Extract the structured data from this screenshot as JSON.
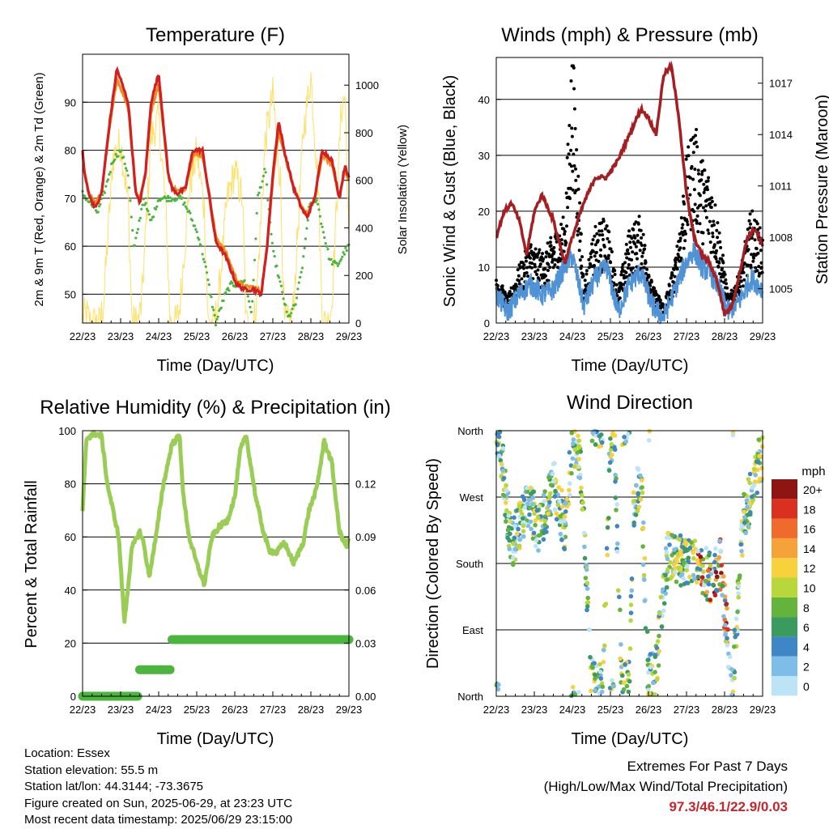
{
  "x_ticks": [
    "22/23",
    "23/23",
    "24/23",
    "25/23",
    "26/23",
    "27/23",
    "28/23",
    "29/23"
  ],
  "panels": {
    "temperature": {
      "title": "Temperature (F)",
      "xlabel": "Time (Day/UTC)",
      "ylabel_left": "2m & 9m T (Red, Orange) & 2m Td (Green)",
      "ylabel_right": "Solar Insolation (Yellow)"
    },
    "winds": {
      "title": "Winds (mph) & Pressure (mb)",
      "xlabel": "Time (Day/UTC)",
      "ylabel_left": "Sonic Wind & Gust (Blue, Black)",
      "ylabel_right": "Station Pressure (Maroon)"
    },
    "humidity": {
      "title": "Relative Humidity (%) & Precipitation (in)",
      "xlabel": "Time (Day/UTC)",
      "ylabel_left": "Percent & Total Rainfall"
    },
    "direction": {
      "title": "Wind Direction",
      "xlabel": "Time (Day/UTC)",
      "ylabel_left": "Direction (Colored By Speed)",
      "legend_title": "mph"
    }
  },
  "colors": {
    "temp_2m": "#d21f1f",
    "temp_9m": "#f08a1f",
    "dewpoint": "#4cb53f",
    "solar": "#ffe066",
    "wind": "#4f93d6",
    "gust": "#000000",
    "pressure": "#a41e22",
    "rh": "#9acd55",
    "precip": "#4cb53f"
  },
  "chart_data": [
    {
      "type": "line",
      "title": "Temperature (F)",
      "xlabel": "Time (Day/UTC)",
      "ylabel": "2m & 9m T (Red, Orange) & 2m Td (Green)",
      "ylabel_right": "Solar Insolation (Yellow)",
      "x_tick_labels": [
        "22/23",
        "23/23",
        "24/23",
        "25/23",
        "26/23",
        "27/23",
        "28/23",
        "29/23"
      ],
      "xlim": [
        0,
        7
      ],
      "ylim": [
        44,
        100
      ],
      "ylim_right": [
        0,
        1130
      ],
      "y_ticks": [
        50,
        60,
        70,
        80,
        90
      ],
      "y_ticks_right": [
        0,
        200,
        400,
        600,
        800,
        1000
      ],
      "grid": true,
      "series": [
        {
          "name": "2m T",
          "x": [
            0,
            0.05,
            0.2,
            0.35,
            0.5,
            0.7,
            0.9,
            1.2,
            1.4,
            1.5,
            1.65,
            1.8,
            2.0,
            2.25,
            2.35,
            2.5,
            2.7,
            2.9,
            3.15,
            3.3,
            3.5,
            3.75,
            3.9,
            4.05,
            4.25,
            4.5,
            4.7,
            4.85,
            5.0,
            5.15,
            5.3,
            5.55,
            5.75,
            5.9,
            6.1,
            6.3,
            6.55,
            6.75,
            6.9,
            7.0
          ],
          "values": [
            80,
            75,
            70,
            68,
            71,
            85,
            97,
            90,
            71,
            69,
            75,
            90,
            96,
            75,
            72,
            71,
            72,
            80,
            80,
            72,
            61,
            58,
            55,
            52,
            51,
            51,
            50,
            60,
            75,
            86,
            80,
            72,
            68,
            66,
            70,
            80,
            78,
            70,
            77,
            74
          ]
        },
        {
          "name": "9m T",
          "x": [
            0,
            0.05,
            0.2,
            0.35,
            0.5,
            0.7,
            0.9,
            1.2,
            1.4,
            1.5,
            1.65,
            1.8,
            2.0,
            2.25,
            2.35,
            2.5,
            2.7,
            2.9,
            3.15,
            3.3,
            3.5,
            3.75,
            3.9,
            4.05,
            4.25,
            4.5,
            4.7,
            4.85,
            5.0,
            5.15,
            5.3,
            5.55,
            5.75,
            5.9,
            6.1,
            6.3,
            6.55,
            6.75,
            6.9,
            7.0
          ],
          "values": [
            79.5,
            75,
            70.5,
            69,
            71,
            84,
            95,
            89,
            71.5,
            70,
            75,
            88,
            94,
            75,
            72.5,
            71.5,
            72,
            79,
            79,
            72.5,
            62,
            59,
            56,
            53,
            51.5,
            51.5,
            50.5,
            60,
            74,
            84,
            79.5,
            72,
            68.5,
            66.5,
            70,
            79,
            77,
            70.5,
            76,
            73.5
          ]
        },
        {
          "name": "2m Td",
          "x": [
            0,
            0.2,
            0.4,
            0.6,
            0.8,
            1.0,
            1.2,
            1.35,
            1.6,
            1.8,
            2.0,
            2.3,
            2.6,
            2.8,
            3.05,
            3.2,
            3.5,
            3.75,
            3.9,
            4.1,
            4.25,
            4.45,
            4.6,
            4.8,
            5.0,
            5.2,
            5.4,
            5.6,
            5.8,
            5.95,
            6.15,
            6.3,
            6.5,
            6.7,
            6.9,
            7.0
          ],
          "values": [
            71,
            69,
            67,
            72,
            78,
            80,
            75,
            59,
            70,
            65,
            70,
            70,
            70,
            67,
            62,
            57,
            44,
            50,
            52,
            52,
            53,
            46,
            70,
            76,
            59,
            52,
            45,
            48,
            57,
            68,
            70,
            64,
            57,
            56,
            59,
            60
          ]
        },
        {
          "name": "Solar Insolation",
          "x": [
            0,
            0.1,
            0.2,
            0.3,
            0.45,
            0.55,
            0.8,
            1.0,
            1.2,
            1.3,
            1.45,
            1.55,
            1.8,
            2.0,
            2.2,
            2.3,
            2.45,
            2.55,
            2.8,
            3.0,
            3.2,
            3.3,
            3.45,
            3.55,
            3.8,
            4.0,
            4.2,
            4.3,
            4.45,
            4.55,
            4.8,
            5.0,
            5.2,
            5.3,
            5.45,
            5.55,
            5.8,
            6.0,
            6.2,
            6.3,
            6.45,
            6.55,
            6.8,
            6.9,
            7.0
          ],
          "values": [
            20,
            40,
            0,
            0,
            0,
            80,
            700,
            760,
            500,
            0,
            0,
            80,
            780,
            860,
            450,
            0,
            0,
            60,
            560,
            720,
            480,
            0,
            0,
            60,
            520,
            640,
            520,
            0,
            0,
            40,
            760,
            960,
            600,
            0,
            0,
            80,
            800,
            1040,
            560,
            0,
            0,
            80,
            900,
            960,
            300
          ]
        }
      ]
    },
    {
      "type": "scatter",
      "title": "Winds (mph) & Pressure (mb)",
      "xlabel": "Time (Day/UTC)",
      "ylabel": "Sonic Wind & Gust (Blue, Black)",
      "ylabel_right": "Station Pressure (Maroon)",
      "x_tick_labels": [
        "22/23",
        "23/23",
        "24/23",
        "25/23",
        "26/23",
        "27/23",
        "28/23",
        "29/23"
      ],
      "xlim": [
        0,
        7
      ],
      "ylim": [
        0,
        47.5
      ],
      "ylim_right": [
        1003,
        1018.5
      ],
      "y_ticks": [
        0,
        10,
        20,
        30,
        40
      ],
      "y_ticks_right": [
        1005,
        1008,
        1011,
        1014,
        1017
      ],
      "grid": true,
      "series": [
        {
          "name": "Sonic Wind",
          "x": [
            0,
            0.3,
            0.6,
            0.9,
            1.2,
            1.5,
            1.8,
            2.0,
            2.3,
            2.6,
            2.9,
            3.2,
            3.5,
            3.8,
            4.1,
            4.4,
            4.7,
            5.0,
            5.2,
            5.4,
            5.6,
            5.8,
            6.1,
            6.4,
            6.7,
            7.0
          ],
          "values": [
            5,
            2,
            5,
            7,
            5,
            6,
            10,
            12,
            3,
            8,
            10,
            2,
            7,
            9,
            3,
            1,
            6,
            11,
            13,
            10,
            9,
            7,
            2,
            4,
            8,
            6
          ]
        },
        {
          "name": "Gust",
          "x": [
            0,
            0.3,
            0.6,
            0.9,
            1.2,
            1.5,
            1.8,
            2.0,
            2.3,
            2.6,
            2.9,
            3.2,
            3.5,
            3.8,
            4.1,
            4.4,
            4.7,
            5.0,
            5.2,
            5.4,
            5.6,
            5.8,
            6.1,
            6.4,
            6.7,
            7.0
          ],
          "values": [
            8,
            4,
            9,
            13,
            11,
            14,
            17,
            45,
            6,
            15,
            17,
            5,
            15,
            17,
            6,
            3,
            10,
            26,
            32,
            26,
            24,
            18,
            4,
            8,
            18,
            14
          ]
        },
        {
          "name": "Station Pressure",
          "x": [
            0,
            0.2,
            0.4,
            0.6,
            0.8,
            1.0,
            1.2,
            1.5,
            1.8,
            2.0,
            2.3,
            2.6,
            2.9,
            3.2,
            3.5,
            3.8,
            4.0,
            4.2,
            4.4,
            4.6,
            4.8,
            5.0,
            5.2,
            5.4,
            5.6,
            5.8,
            6.0,
            6.2,
            6.4,
            6.6,
            6.8,
            7.0
          ],
          "values": [
            1008,
            1009.5,
            1010,
            1009,
            1007,
            1009.5,
            1010.5,
            1009,
            1006.5,
            1008,
            1010,
            1011.5,
            1011.5,
            1012.5,
            1014,
            1015.5,
            1015,
            1014,
            1017.5,
            1018,
            1015,
            1010.5,
            1008,
            1007,
            1006.5,
            1005.5,
            1003.5,
            1004,
            1006,
            1008,
            1008.5,
            1007.5
          ]
        }
      ]
    },
    {
      "type": "line",
      "title": "Relative Humidity (%) & Precipitation (in)",
      "xlabel": "Time (Day/UTC)",
      "ylabel": "Percent & Total Rainfall",
      "x_tick_labels": [
        "22/23",
        "23/23",
        "24/23",
        "25/23",
        "26/23",
        "27/23",
        "28/23",
        "29/23"
      ],
      "xlim": [
        0,
        7
      ],
      "ylim": [
        0,
        100
      ],
      "ylim_right": [
        0,
        0.15
      ],
      "y_ticks": [
        0,
        20,
        40,
        60,
        80,
        100
      ],
      "y_ticks_right": [
        "0.00",
        "0.03",
        "0.06",
        "0.09",
        "0.12"
      ],
      "grid": true,
      "series": [
        {
          "name": "Relative Humidity",
          "x": [
            0,
            0.1,
            0.3,
            0.5,
            0.65,
            0.8,
            0.95,
            1.1,
            1.3,
            1.5,
            1.6,
            1.75,
            1.95,
            2.1,
            2.35,
            2.55,
            2.65,
            2.8,
            3.0,
            3.2,
            3.4,
            3.6,
            3.8,
            4.0,
            4.15,
            4.3,
            4.55,
            4.75,
            4.9,
            5.1,
            5.3,
            5.55,
            5.8,
            5.95,
            6.15,
            6.35,
            6.55,
            6.75,
            6.95,
            7.0
          ],
          "values": [
            69,
            97,
            99,
            98,
            80,
            70,
            60,
            28,
            56,
            62,
            58,
            45,
            62,
            78,
            95,
            98,
            75,
            60,
            50,
            42,
            60,
            64,
            66,
            75,
            93,
            98,
            75,
            62,
            55,
            54,
            58,
            50,
            58,
            70,
            78,
            96,
            88,
            62,
            56,
            60
          ]
        },
        {
          "name": "Total Rainfall",
          "x": [
            0,
            1.45,
            1.5,
            2.05,
            2.3,
            2.35,
            7.0
          ],
          "values": [
            0,
            0,
            0.015,
            0.015,
            0.015,
            0.032,
            0.032
          ]
        }
      ]
    },
    {
      "type": "scatter",
      "title": "Wind Direction",
      "xlabel": "Time (Day/UTC)",
      "ylabel": "Direction (Colored By Speed)",
      "x_tick_labels": [
        "22/23",
        "23/23",
        "24/23",
        "25/23",
        "26/23",
        "27/23",
        "28/23",
        "29/23"
      ],
      "y_tick_labels": [
        "North",
        "East",
        "South",
        "West",
        "North"
      ],
      "xlim": [
        0,
        7
      ],
      "ylim": [
        0,
        360
      ],
      "grid": true,
      "colorbar": {
        "title": "mph",
        "labels": [
          "0",
          "2",
          "4",
          "6",
          "8",
          "10",
          "12",
          "14",
          "16",
          "18",
          "20+"
        ],
        "colors": [
          "#bde3f7",
          "#7ebde8",
          "#3f86c6",
          "#3b9b5e",
          "#64b33c",
          "#b9d63a",
          "#f7d23c",
          "#f6a23a",
          "#f06a2c",
          "#d9301f",
          "#c11b1a",
          "#8e1512"
        ]
      },
      "series": [
        {
          "name": "Wind Direction",
          "x": [
            0.1,
            0.4,
            0.6,
            0.9,
            1.1,
            1.3,
            1.5,
            1.8,
            2.0,
            2.2,
            2.5,
            2.6,
            2.8,
            3.0,
            3.1,
            3.3,
            3.5,
            3.6,
            3.8,
            4.0,
            4.2,
            4.5,
            4.8,
            4.9,
            5.1,
            5.3,
            5.6,
            5.9,
            6.2,
            6.5,
            6.7,
            6.8,
            6.9
          ],
          "values": [
            345,
            200,
            230,
            260,
            220,
            250,
            290,
            230,
            340,
            330,
            20,
            10,
            15,
            350,
            355,
            10,
            25,
            260,
            300,
            20,
            40,
            190,
            185,
            182,
            185,
            183,
            160,
            180,
            10,
            250,
            270,
            290,
            320
          ]
        }
      ]
    }
  ],
  "info": {
    "location": "Location: Essex",
    "elevation": "Station elevation: 55.5 m",
    "latlon": "Station lat/lon: 44.3144; -73.3675",
    "created": "Figure created on Sun, 2025-06-29, at 23:23 UTC",
    "recent": "Most recent data timestamp: 2025/06/29 23:15:00"
  },
  "extremes": {
    "title": "Extremes For Past 7 Days",
    "subtitle": "(High/Low/Max Wind/Total Precipitation)",
    "values": "97.3/46.1/22.9/0.03"
  }
}
